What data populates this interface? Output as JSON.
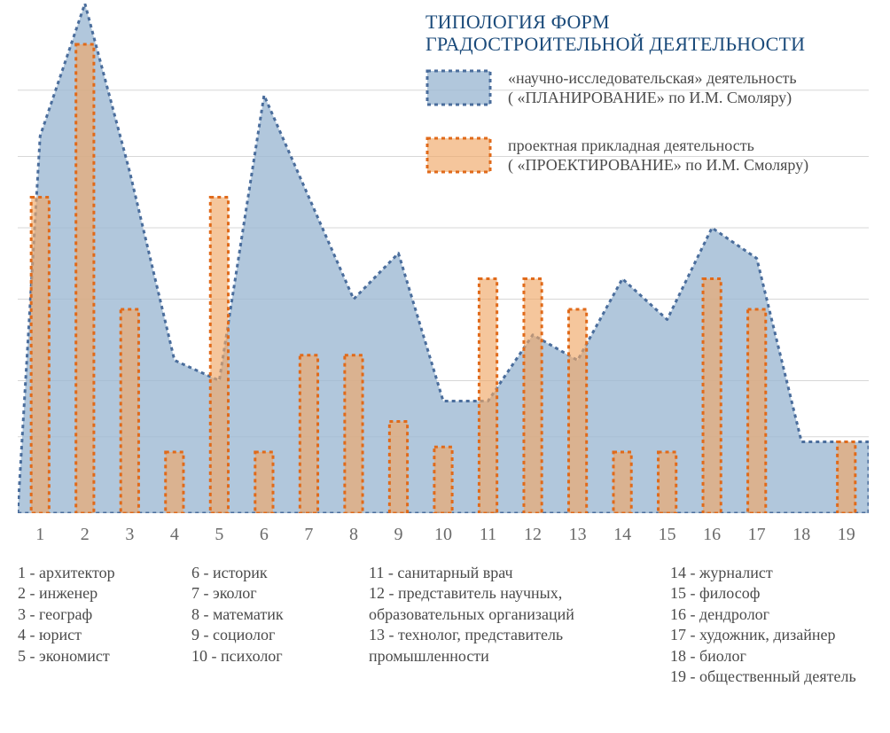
{
  "title": {
    "line1": "ТИПОЛОГИЯ ФОРМ",
    "line2": "ГРАДОСТРОИТЕЛЬНОЙ ДЕЯТЕЛЬНОСТИ"
  },
  "legend": {
    "area": {
      "line1": "«научно-исследовательская» деятельность",
      "line2": "( «ПЛАНИРОВАНИЕ» по И.М. Смоляру)"
    },
    "bars": {
      "line1": "проектная прикладная деятельность",
      "line2": "( «ПРОЕКТИРОВАНИЕ» по И.М. Смоляру)"
    }
  },
  "chart": {
    "type": "area+bar",
    "categories": [
      "1",
      "2",
      "3",
      "4",
      "5",
      "6",
      "7",
      "8",
      "9",
      "10",
      "11",
      "12",
      "13",
      "14",
      "15",
      "16",
      "17",
      "18",
      "19"
    ],
    "area_values": [
      74,
      100,
      67,
      30,
      26,
      82,
      62,
      42,
      51,
      22,
      22,
      35,
      30,
      46,
      38,
      56,
      50,
      14,
      14
    ],
    "bar_values": [
      62,
      92,
      40,
      12,
      62,
      12,
      31,
      31,
      18,
      13,
      46,
      46,
      40,
      12,
      12,
      46,
      40,
      0,
      14
    ],
    "ylim": [
      0,
      100
    ],
    "gridline_y_values": [
      0,
      15,
      26,
      42,
      56,
      70,
      83
    ],
    "area_fill_color": "#9db9d3",
    "area_fill_opacity": 0.8,
    "area_stroke_color": "#4a6d9c",
    "area_stroke_width": 3,
    "area_stroke_dasharray": "4 4",
    "bar_fill_color": "#f0a867",
    "bar_fill_opacity": 0.65,
    "bar_stroke_color": "#e06a1a",
    "bar_stroke_width": 3,
    "bar_stroke_dasharray": "4 4",
    "bar_width_ratio": 0.4,
    "grid_color": "#d7d7d7",
    "grid_width": 1,
    "background_color": "#ffffff",
    "xlabel_color": "#6a6a6a",
    "xlabel_fontsize": 20,
    "title_color": "#1a4a7a",
    "title_fontsize": 22,
    "legend_fontsize": 18,
    "footer_fontsize": 18
  },
  "footer": {
    "col1": [
      "1 - архитектор",
      "2 - инженер",
      "3 - географ",
      "4 - юрист",
      "5 - экономист"
    ],
    "col2": [
      "6 - историк",
      "7 - эколог",
      "8 - математик",
      "9 - социолог",
      "10 - психолог"
    ],
    "col3": [
      "11 - санитарный врач",
      "12 - представитель научных,",
      "образовательных организаций",
      "13 - технолог, представитель",
      "промышленности"
    ],
    "col4": [
      "14 - журналист",
      "15 - философ",
      "16 - дендролог",
      "17 - художник, дизайнер",
      "18 - биолог",
      "19 - общественный деятель"
    ]
  }
}
